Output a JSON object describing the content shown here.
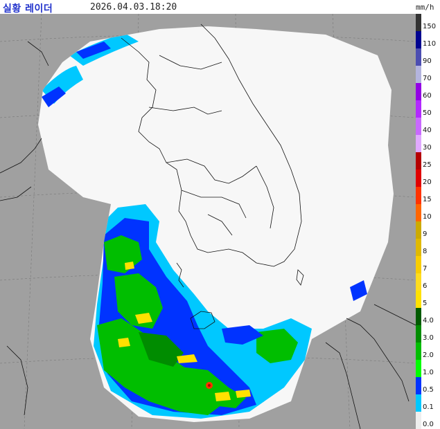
{
  "header": {
    "title": "실황 레이더",
    "timestamp": "2026.04.03.18:20",
    "unit": "mm/h"
  },
  "legend": {
    "levels": [
      {
        "label": "150",
        "color": "#333333"
      },
      {
        "label": "110",
        "color": "#000390"
      },
      {
        "label": "90",
        "color": "#4c4eb1"
      },
      {
        "label": "70",
        "color": "#b3b4de"
      },
      {
        "label": "60",
        "color": "#9300e4"
      },
      {
        "label": "50",
        "color": "#b329ff"
      },
      {
        "label": "40",
        "color": "#c969ff"
      },
      {
        "label": "30",
        "color": "#e0a9ff"
      },
      {
        "label": "25",
        "color": "#b40000"
      },
      {
        "label": "20",
        "color": "#e00000"
      },
      {
        "label": "15",
        "color": "#ff3300"
      },
      {
        "label": "10",
        "color": "#ff6600"
      },
      {
        "label": "9",
        "color": "#ccaa00"
      },
      {
        "label": "8",
        "color": "#e0b900"
      },
      {
        "label": "7",
        "color": "#f9cd00"
      },
      {
        "label": "6",
        "color": "#ffdc1f"
      },
      {
        "label": "5",
        "color": "#ffe100"
      },
      {
        "label": "4.0",
        "color": "#005a00"
      },
      {
        "label": "3.0",
        "color": "#008c00"
      },
      {
        "label": "2.0",
        "color": "#00be00"
      },
      {
        "label": "1.0",
        "color": "#00ff00"
      },
      {
        "label": "0.5",
        "color": "#0033ff"
      },
      {
        "label": "0.1",
        "color": "#00c8ff"
      },
      {
        "label": "0.0",
        "color": "#eeeeee"
      }
    ]
  },
  "map_colors": {
    "outside_coverage": "#a0a0a0",
    "coverage_clear": "#f7f7f7",
    "light_rain": "#00c8ff",
    "medium_rain": "#0033ff",
    "moderate_rain": "#00be00",
    "heavy_rain": "#ffe100",
    "intense_rain": "#ff3300"
  }
}
